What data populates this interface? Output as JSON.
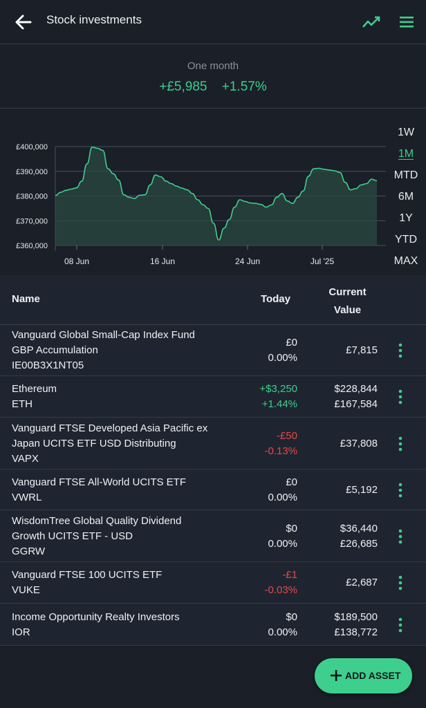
{
  "header": {
    "title": "Stock investments",
    "icons": [
      "arrow-left-icon",
      "trend-line-icon",
      "hamburger-menu-icon"
    ]
  },
  "summary": {
    "period": "One month",
    "change_amount": "+£5,985",
    "change_percent": "+1.57%"
  },
  "chart_data": {
    "type": "area",
    "ylabel_ticks": [
      "£360,000",
      "£370,000",
      "£380,000",
      "£390,000",
      "£400,000"
    ],
    "x_ticks": [
      "08 Jun",
      "16 Jun",
      "24 Jun",
      "Jul '25"
    ],
    "ylim": [
      360000,
      400000
    ],
    "grid": true,
    "series": [
      {
        "values": [
          380200,
          381500,
          382300,
          382800,
          383300,
          386000,
          393000,
          399800,
          399300,
          398500,
          391000,
          389000,
          386500,
          380500,
          379500,
          379000,
          380300,
          380500,
          384500,
          388500,
          387800,
          386000,
          385000,
          384000,
          383200,
          382500,
          381000,
          378500,
          376500,
          375000,
          369000,
          362200,
          367000,
          370500,
          375500,
          378500,
          377800,
          377200,
          377000,
          376600,
          375500,
          376400,
          379500,
          381000,
          378000,
          377000,
          379500,
          382000,
          388000,
          391000,
          391200,
          390800,
          390500,
          390200,
          389500,
          385500,
          382500,
          383000,
          384500,
          385000,
          386800,
          386200
        ]
      }
    ],
    "range_options": [
      "1W",
      "1M",
      "MTD",
      "6M",
      "1Y",
      "YTD",
      "MAX"
    ],
    "selected_range": "1M",
    "colors": {
      "line": "#3ecf8e",
      "fill": "#2a4a40"
    }
  },
  "table": {
    "headers": {
      "name": "Name",
      "today": "Today",
      "value_line1": "Current",
      "value_line2": "Value"
    },
    "rows": [
      {
        "name1": "Vanguard Global Small-Cap Index Fund",
        "name2": "GBP Accumulation",
        "name3": "IE00B3X1NT05",
        "today1": "£0",
        "today2": "0.00%",
        "value1": "£7,815",
        "value2": ""
      },
      {
        "name1": "Ethereum",
        "name2": "ETH",
        "name3": "",
        "today1": "+$3,250",
        "today2": "+1.44%",
        "value1": "$228,844",
        "value2": "£167,584"
      },
      {
        "name1": "Vanguard FTSE Developed Asia Pacific ex",
        "name2": "Japan UCITS ETF USD Distributing",
        "name3": "VAPX",
        "today1": "-£50",
        "today2": "-0.13%",
        "value1": "£37,808",
        "value2": ""
      },
      {
        "name1": "Vanguard FTSE All-World UCITS ETF",
        "name2": "VWRL",
        "name3": "",
        "today1": "£0",
        "today2": "0.00%",
        "value1": "£5,192",
        "value2": ""
      },
      {
        "name1": "WisdomTree Global Quality Dividend",
        "name2": "Growth UCITS ETF - USD",
        "name3": "GGRW",
        "today1": "$0",
        "today2": "0.00%",
        "value1": "$36,440",
        "value2": "£26,685"
      },
      {
        "name1": "Vanguard FTSE 100 UCITS ETF",
        "name2": "VUKE",
        "name3": "",
        "today1": "-£1",
        "today2": "-0.03%",
        "value1": "£2,687",
        "value2": ""
      },
      {
        "name1": "Income Opportunity Realty Investors",
        "name2": "IOR",
        "name3": "",
        "today1": "$0",
        "today2": "0.00%",
        "value1": "$189,500",
        "value2": "£138,772"
      }
    ]
  },
  "fab": {
    "label": "ADD ASSET",
    "icon": "plus-icon"
  }
}
